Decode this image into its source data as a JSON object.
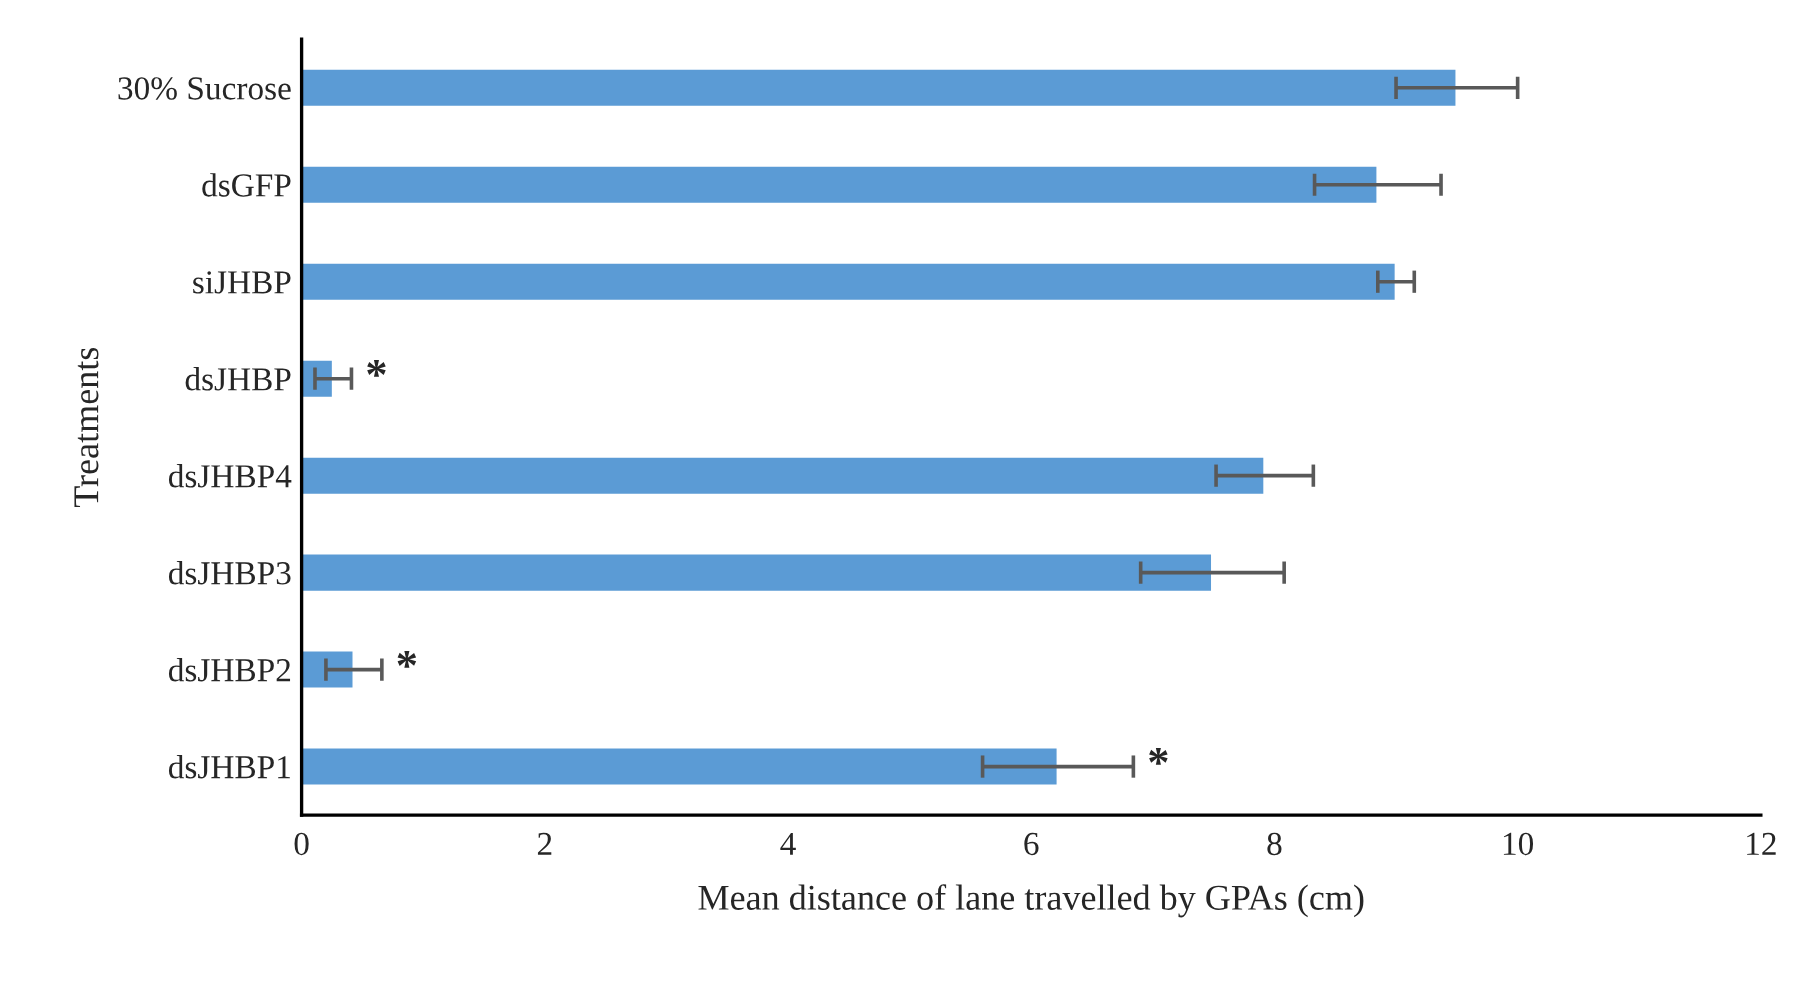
{
  "chart_data": {
    "type": "bar",
    "orientation": "horizontal",
    "xlabel": "Mean distance of lane travelled by GPAs (cm)",
    "ylabel": "Treatments",
    "categories": [
      "30% Sucrose",
      "dsGFP",
      "siJHBP",
      "dsJHBP",
      "dsJHBP4",
      "dsJHBP3",
      "dsJHBP2",
      "dsJHBP1"
    ],
    "values": [
      9.5,
      8.85,
      9.0,
      0.26,
      7.92,
      7.49,
      0.43,
      6.22
    ],
    "errors": [
      0.5,
      0.52,
      0.15,
      0.15,
      0.4,
      0.59,
      0.23,
      0.62
    ],
    "color": "#5b9bd5",
    "xlim": [
      0,
      12
    ],
    "xticks": [
      0,
      2,
      4,
      6,
      8,
      10,
      12
    ],
    "grid": false,
    "legend": false,
    "annotations": [
      {
        "text": "*",
        "x": 0.41,
        "y": "dsJHBP"
      },
      {
        "text": "*",
        "x": 0.66,
        "y": "dsJHBP2"
      },
      {
        "text": "*",
        "x": 6.84,
        "y": "dsJHBP1"
      }
    ]
  }
}
